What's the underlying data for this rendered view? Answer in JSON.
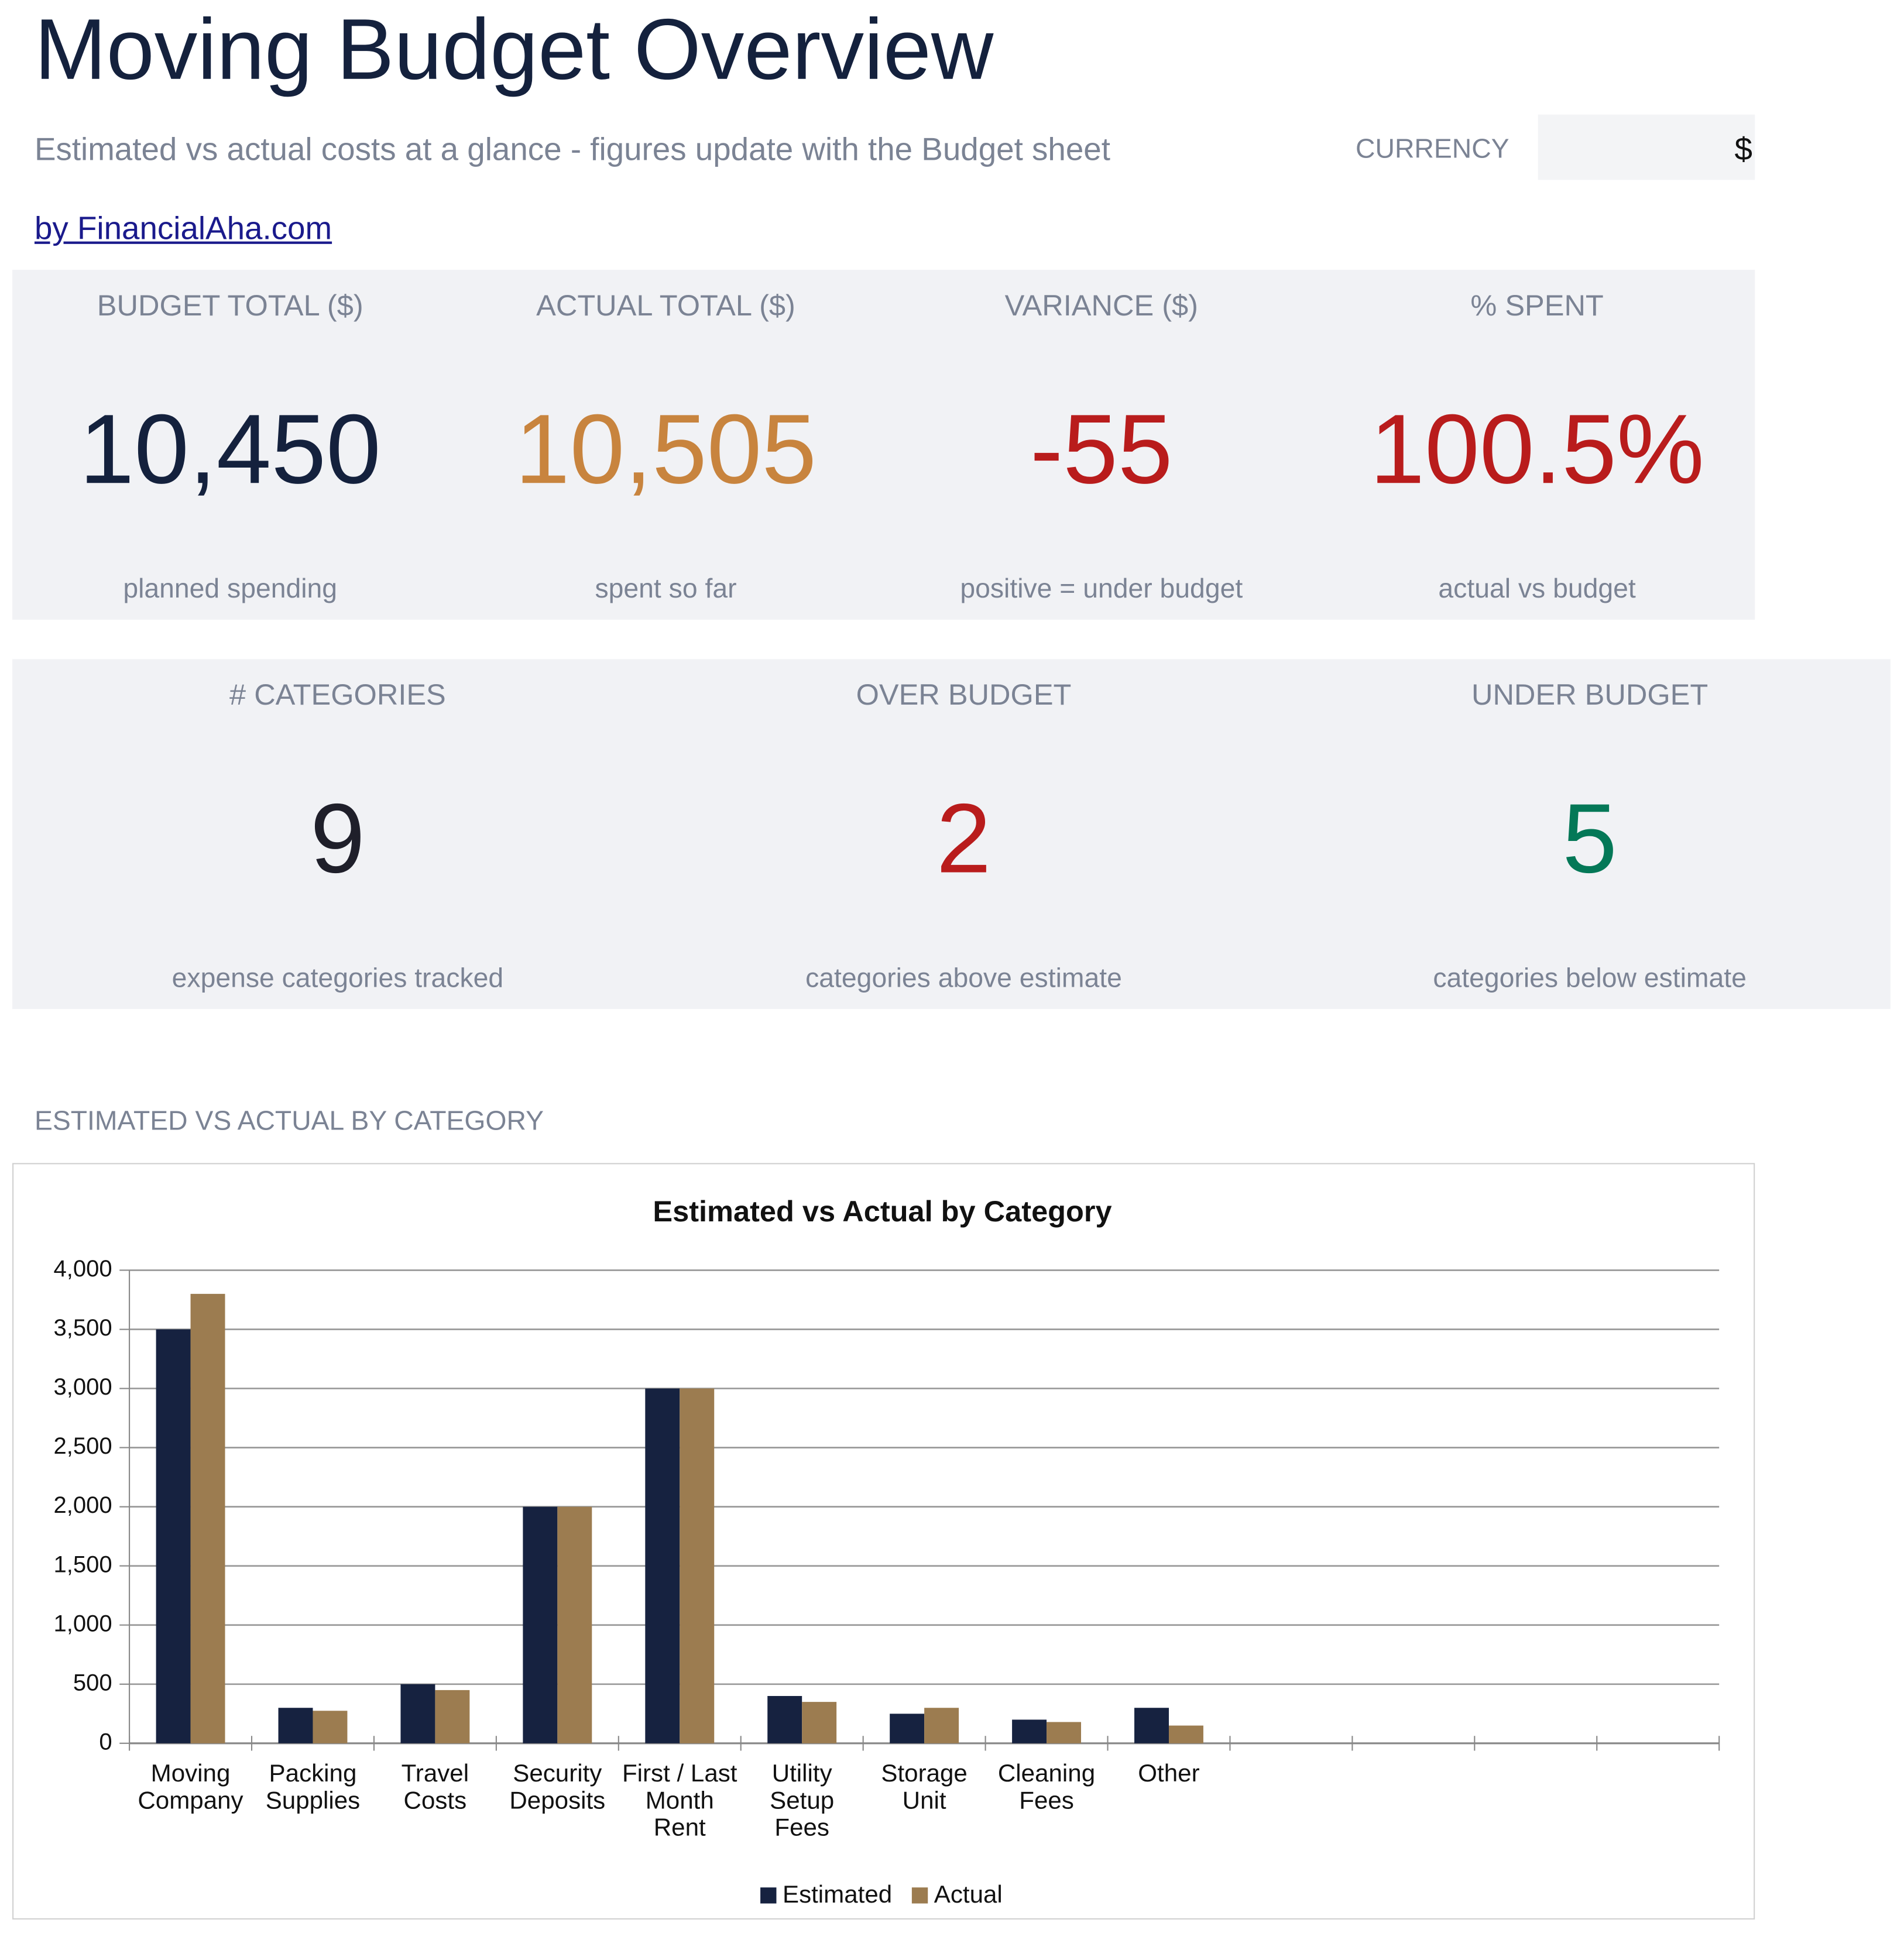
{
  "header": {
    "title": "Moving Budget Overview",
    "subtitle": "Estimated vs actual costs at a glance - figures update with the Budget sheet",
    "currency_label": "CURRENCY",
    "currency_value": "$",
    "link": "by FinancialAha.com"
  },
  "kpis_top": [
    {
      "label": "BUDGET TOTAL ($)",
      "value": "10,450",
      "note": "planned spending",
      "color": "#14213d"
    },
    {
      "label": "ACTUAL TOTAL ($)",
      "value": "10,505",
      "note": "spent so far",
      "color": "#c8843e"
    },
    {
      "label": "VARIANCE ($)",
      "value": "-55",
      "note": "positive = under budget",
      "color": "#b91c1c"
    },
    {
      "label": "% SPENT",
      "value": "100.5%",
      "note": "actual vs budget",
      "color": "#b91c1c"
    }
  ],
  "kpis_bottom": [
    {
      "label": "# CATEGORIES",
      "value": "9",
      "note": "expense categories tracked",
      "color": "#1f1f2a"
    },
    {
      "label": "OVER BUDGET",
      "value": "2",
      "note": "categories above estimate",
      "color": "#b91c1c"
    },
    {
      "label": "UNDER BUDGET",
      "value": "5",
      "note": "categories below estimate",
      "color": "#047857"
    }
  ],
  "section_label": "ESTIMATED VS ACTUAL BY CATEGORY",
  "chart_data": {
    "type": "bar",
    "title": "Estimated vs Actual by Category",
    "categories": [
      "Moving Company",
      "Packing Supplies",
      "Travel Costs",
      "Security Deposits",
      "First / Last Month Rent",
      "Utility Setup Fees",
      "Storage Unit",
      "Cleaning Fees",
      "Other",
      null,
      null,
      null,
      null
    ],
    "series": [
      {
        "name": "Estimated",
        "color": "#162240",
        "values": [
          3500,
          300,
          500,
          2000,
          3000,
          400,
          250,
          200,
          300,
          null,
          null,
          null,
          null
        ]
      },
      {
        "name": "Actual",
        "color": "#9c7c50",
        "values": [
          3800,
          275,
          450,
          2000,
          3000,
          350,
          300,
          180,
          150,
          null,
          null,
          null,
          null
        ]
      }
    ],
    "ylim": [
      0,
      4000
    ],
    "yticks": [
      0,
      500,
      {
        "value": 1000,
        "label": "1,000"
      },
      {
        "value": 1500,
        "label": "1,500"
      },
      {
        "value": 2000,
        "label": "2,000"
      },
      {
        "value": 2500,
        "label": "2,500"
      },
      {
        "value": 3000,
        "label": "3,000"
      },
      {
        "value": 3500,
        "label": "3,500"
      },
      {
        "value": 4000,
        "label": "4,000"
      }
    ],
    "grid": true,
    "legend": "bottom"
  }
}
